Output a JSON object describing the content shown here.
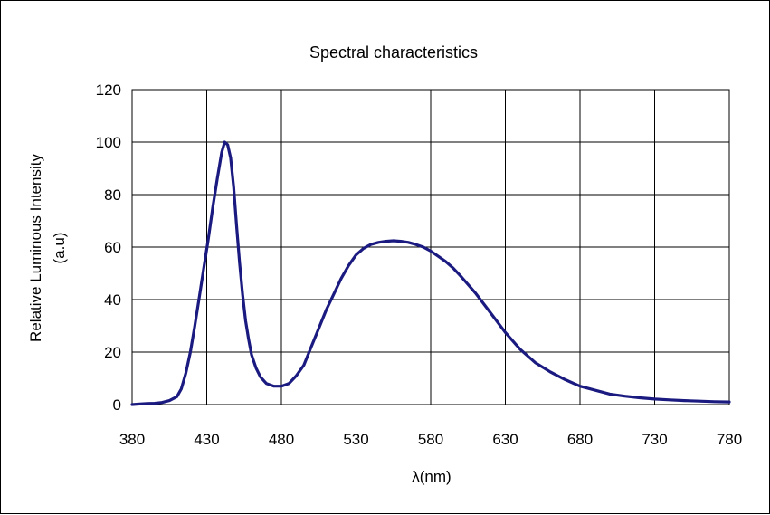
{
  "chart_data": {
    "type": "line",
    "title": "Spectral characteristics",
    "xlabel": "λ(nm)",
    "ylabel": "Relative Luminous Intensity",
    "ylabel_unit": "(a.u)",
    "xlim": [
      380,
      780
    ],
    "ylim": [
      0,
      120
    ],
    "xticks": [
      380,
      430,
      480,
      530,
      580,
      630,
      680,
      730,
      780
    ],
    "yticks": [
      0,
      20,
      40,
      60,
      80,
      100,
      120
    ],
    "grid": true,
    "line_color": "#1a1a80",
    "series": [
      {
        "x": [
          380,
          385,
          390,
          395,
          400,
          405,
          410,
          413,
          416,
          419,
          422,
          425,
          428,
          431,
          434,
          437,
          440,
          442,
          444,
          446,
          448,
          450,
          452,
          454,
          456,
          458,
          460,
          463,
          466,
          470,
          475,
          480,
          485,
          490,
          495,
          500,
          505,
          510,
          515,
          520,
          525,
          530,
          535,
          540,
          545,
          550,
          555,
          560,
          565,
          570,
          575,
          580,
          585,
          590,
          595,
          600,
          610,
          620,
          630,
          640,
          650,
          660,
          670,
          680,
          690,
          700,
          710,
          720,
          730,
          740,
          750,
          760,
          770,
          780
        ],
        "y": [
          0,
          0.2,
          0.4,
          0.5,
          0.8,
          1.5,
          3,
          6,
          12,
          20,
          30,
          41,
          52,
          63,
          75,
          86,
          96,
          100,
          99,
          94,
          83,
          68,
          54,
          42,
          32,
          25,
          19,
          14,
          10.5,
          8,
          7,
          7,
          8,
          11,
          15,
          22,
          29,
          36,
          42,
          48,
          53,
          57,
          59.5,
          61,
          61.8,
          62.2,
          62.4,
          62.2,
          61.8,
          61,
          60,
          58.5,
          56.5,
          54.5,
          52,
          49,
          42.5,
          35,
          27.5,
          21,
          16,
          12.5,
          9.5,
          7,
          5.5,
          4,
          3.2,
          2.6,
          2.1,
          1.8,
          1.5,
          1.3,
          1.1,
          1
        ]
      }
    ]
  }
}
